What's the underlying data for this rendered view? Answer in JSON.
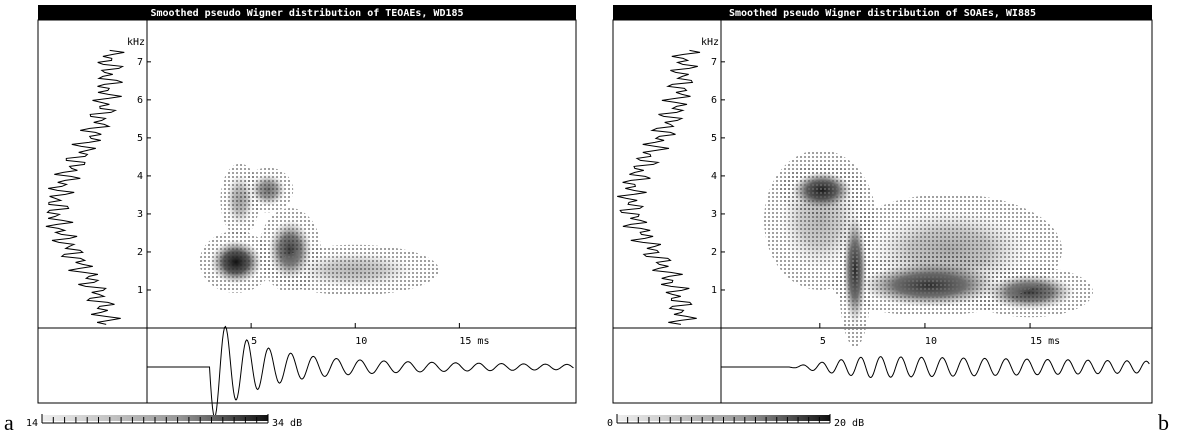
{
  "chart_data": [
    {
      "type": "spectrogram",
      "title": "Smoothed pseudo Wigner distribution of TEOAEs, WD185",
      "y_label": "kHz",
      "ylim": [
        0,
        8.1
      ],
      "yticks": [
        1,
        2,
        3,
        4,
        5,
        6,
        7
      ],
      "xlim": [
        0,
        20.6
      ],
      "xticks": [
        5,
        10,
        {
          "value": 15,
          "label": "15 ms"
        }
      ],
      "colorbar_ticks": [
        14,
        {
          "value": 34,
          "label": "34 dB"
        }
      ],
      "panel_label": "a"
    },
    {
      "type": "spectrogram",
      "title": "Smoothed pseudo Wigner distribution of SOAEs, WI885",
      "y_label": "kHz",
      "ylim": [
        0,
        8.1
      ],
      "yticks": [
        1,
        2,
        3,
        4,
        5,
        6,
        7
      ],
      "xlim": [
        0.3,
        20.8
      ],
      "xticks": [
        5,
        10,
        {
          "value": 15,
          "label": "15 ms"
        }
      ],
      "colorbar_ticks": [
        0,
        {
          "value": 20,
          "label": "20 dB"
        }
      ],
      "panel_label": "b"
    }
  ]
}
